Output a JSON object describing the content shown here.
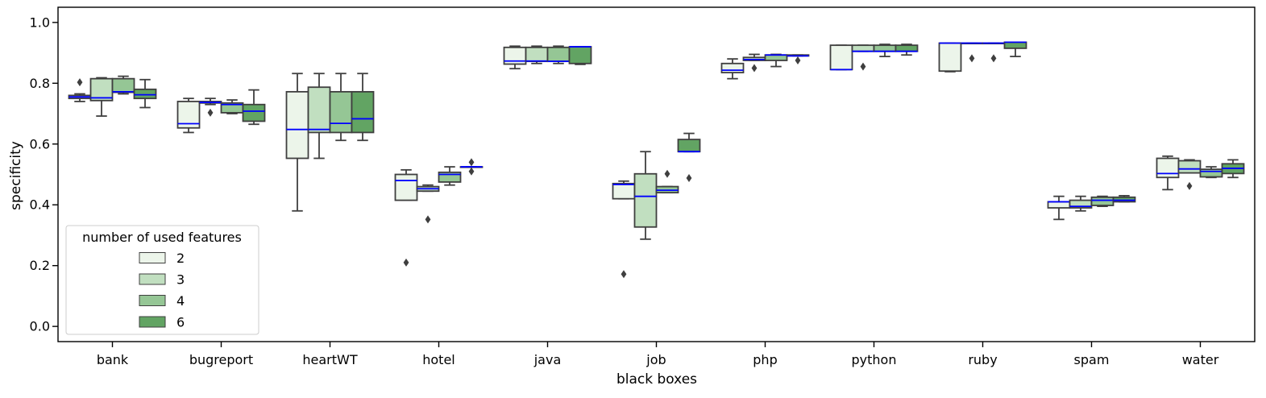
{
  "chart_data": {
    "type": "box",
    "title": "",
    "xlabel": "black boxes",
    "ylabel": "specificity",
    "ylim": [
      -0.05,
      1.05
    ],
    "yticks": [
      0.0,
      0.2,
      0.4,
      0.6,
      0.8,
      1.0
    ],
    "ytick_labels": [
      "0.0",
      "0.2",
      "0.4",
      "0.6",
      "0.8",
      "1.0"
    ],
    "grid": false,
    "categories": [
      "bank",
      "bugreport",
      "heartWT",
      "hotel",
      "java",
      "job",
      "php",
      "python",
      "ruby",
      "spam",
      "water"
    ],
    "legend": {
      "title": "number of used features",
      "position": "lower-left",
      "entries": [
        "2",
        "3",
        "4",
        "6"
      ]
    },
    "colors": {
      "series": [
        "#ecf5ea",
        "#c1dfc0",
        "#95c695",
        "#62a463"
      ],
      "median": "#0000ff",
      "edge": "#3f3f3f"
    },
    "series": [
      {
        "name": "2",
        "boxes": [
          {
            "whislo": 0.74,
            "q1": 0.75,
            "med": 0.755,
            "q3": 0.76,
            "whishi": 0.765,
            "fliers": [
              0.803
            ]
          },
          {
            "whislo": 0.638,
            "q1": 0.653,
            "med": 0.667,
            "q3": 0.74,
            "whishi": 0.75,
            "fliers": []
          },
          {
            "whislo": 0.38,
            "q1": 0.553,
            "med": 0.648,
            "q3": 0.772,
            "whishi": 0.832,
            "fliers": []
          },
          {
            "whislo": 0.415,
            "q1": 0.415,
            "med": 0.48,
            "q3": 0.5,
            "whishi": 0.515,
            "fliers": [
              0.21
            ]
          },
          {
            "whislo": 0.848,
            "q1": 0.863,
            "med": 0.873,
            "q3": 0.918,
            "whishi": 0.922,
            "fliers": []
          },
          {
            "whislo": 0.42,
            "q1": 0.42,
            "med": 0.467,
            "q3": 0.47,
            "whishi": 0.478,
            "fliers": [
              0.172
            ]
          },
          {
            "whislo": 0.815,
            "q1": 0.835,
            "med": 0.843,
            "q3": 0.865,
            "whishi": 0.88,
            "fliers": []
          },
          {
            "whislo": 0.845,
            "q1": 0.845,
            "med": 0.845,
            "q3": 0.925,
            "whishi": 0.925,
            "fliers": []
          },
          {
            "whislo": 0.838,
            "q1": 0.84,
            "med": 0.932,
            "q3": 0.932,
            "whishi": 0.932,
            "fliers": []
          },
          {
            "whislo": 0.352,
            "q1": 0.39,
            "med": 0.41,
            "q3": 0.41,
            "whishi": 0.428,
            "fliers": []
          },
          {
            "whislo": 0.45,
            "q1": 0.49,
            "med": 0.503,
            "q3": 0.553,
            "whishi": 0.56,
            "fliers": []
          }
        ]
      },
      {
        "name": "3",
        "boxes": [
          {
            "whislo": 0.692,
            "q1": 0.743,
            "med": 0.752,
            "q3": 0.815,
            "whishi": 0.818,
            "fliers": []
          },
          {
            "whislo": 0.73,
            "q1": 0.735,
            "med": 0.737,
            "q3": 0.74,
            "whishi": 0.75,
            "fliers": [
              0.703
            ]
          },
          {
            "whislo": 0.553,
            "q1": 0.638,
            "med": 0.648,
            "q3": 0.787,
            "whishi": 0.832,
            "fliers": []
          },
          {
            "whislo": 0.445,
            "q1": 0.445,
            "med": 0.453,
            "q3": 0.46,
            "whishi": 0.465,
            "fliers": [
              0.352
            ]
          },
          {
            "whislo": 0.865,
            "q1": 0.872,
            "med": 0.873,
            "q3": 0.918,
            "whishi": 0.922,
            "fliers": []
          },
          {
            "whislo": 0.287,
            "q1": 0.327,
            "med": 0.428,
            "q3": 0.502,
            "whishi": 0.575,
            "fliers": []
          },
          {
            "whislo": 0.875,
            "q1": 0.875,
            "med": 0.878,
            "q3": 0.885,
            "whishi": 0.895,
            "fliers": [
              0.85
            ]
          },
          {
            "whislo": 0.905,
            "q1": 0.905,
            "med": 0.905,
            "q3": 0.925,
            "whishi": 0.925,
            "fliers": [
              0.855
            ]
          },
          {
            "whislo": 0.932,
            "q1": 0.932,
            "med": 0.932,
            "q3": 0.932,
            "whishi": 0.932,
            "fliers": [
              0.882
            ]
          },
          {
            "whislo": 0.38,
            "q1": 0.39,
            "med": 0.395,
            "q3": 0.415,
            "whishi": 0.428,
            "fliers": []
          },
          {
            "whislo": 0.505,
            "q1": 0.505,
            "med": 0.518,
            "q3": 0.545,
            "whishi": 0.548,
            "fliers": [
              0.462
            ]
          }
        ]
      },
      {
        "name": "4",
        "boxes": [
          {
            "whislo": 0.765,
            "q1": 0.77,
            "med": 0.772,
            "q3": 0.815,
            "whishi": 0.823,
            "fliers": []
          },
          {
            "whislo": 0.7,
            "q1": 0.703,
            "med": 0.73,
            "q3": 0.735,
            "whishi": 0.745,
            "fliers": []
          },
          {
            "whislo": 0.612,
            "q1": 0.638,
            "med": 0.668,
            "q3": 0.772,
            "whishi": 0.832,
            "fliers": []
          },
          {
            "whislo": 0.465,
            "q1": 0.475,
            "med": 0.5,
            "q3": 0.507,
            "whishi": 0.525,
            "fliers": []
          },
          {
            "whislo": 0.865,
            "q1": 0.872,
            "med": 0.872,
            "q3": 0.918,
            "whishi": 0.922,
            "fliers": []
          },
          {
            "whislo": 0.44,
            "q1": 0.44,
            "med": 0.448,
            "q3": 0.46,
            "whishi": 0.46,
            "fliers": [
              0.502
            ]
          },
          {
            "whislo": 0.855,
            "q1": 0.875,
            "med": 0.893,
            "q3": 0.893,
            "whishi": 0.895,
            "fliers": []
          },
          {
            "whislo": 0.888,
            "q1": 0.905,
            "med": 0.905,
            "q3": 0.925,
            "whishi": 0.928,
            "fliers": []
          },
          {
            "whislo": 0.932,
            "q1": 0.932,
            "med": 0.932,
            "q3": 0.932,
            "whishi": 0.932,
            "fliers": [
              0.882
            ]
          },
          {
            "whislo": 0.395,
            "q1": 0.398,
            "med": 0.415,
            "q3": 0.425,
            "whishi": 0.428,
            "fliers": []
          },
          {
            "whislo": 0.49,
            "q1": 0.492,
            "med": 0.51,
            "q3": 0.517,
            "whishi": 0.525,
            "fliers": []
          }
        ]
      },
      {
        "name": "6",
        "boxes": [
          {
            "whislo": 0.72,
            "q1": 0.75,
            "med": 0.762,
            "q3": 0.78,
            "whishi": 0.812,
            "fliers": []
          },
          {
            "whislo": 0.665,
            "q1": 0.675,
            "med": 0.708,
            "q3": 0.73,
            "whishi": 0.778,
            "fliers": []
          },
          {
            "whislo": 0.612,
            "q1": 0.638,
            "med": 0.683,
            "q3": 0.772,
            "whishi": 0.832,
            "fliers": []
          },
          {
            "whislo": 0.525,
            "q1": 0.525,
            "med": 0.525,
            "q3": 0.525,
            "whishi": 0.525,
            "fliers": [
              0.51,
              0.54
            ]
          },
          {
            "whislo": 0.862,
            "q1": 0.865,
            "med": 0.92,
            "q3": 0.92,
            "whishi": 0.92,
            "fliers": []
          },
          {
            "whislo": 0.575,
            "q1": 0.575,
            "med": 0.575,
            "q3": 0.615,
            "whishi": 0.635,
            "fliers": [
              0.488
            ]
          },
          {
            "whislo": 0.89,
            "q1": 0.89,
            "med": 0.89,
            "q3": 0.893,
            "whishi": 0.893,
            "fliers": [
              0.875
            ]
          },
          {
            "whislo": 0.893,
            "q1": 0.905,
            "med": 0.905,
            "q3": 0.925,
            "whishi": 0.928,
            "fliers": []
          },
          {
            "whislo": 0.888,
            "q1": 0.915,
            "med": 0.935,
            "q3": 0.935,
            "whishi": 0.935,
            "fliers": []
          },
          {
            "whislo": 0.41,
            "q1": 0.41,
            "med": 0.415,
            "q3": 0.425,
            "whishi": 0.43,
            "fliers": []
          },
          {
            "whislo": 0.49,
            "q1": 0.503,
            "med": 0.52,
            "q3": 0.535,
            "whishi": 0.548,
            "fliers": []
          }
        ]
      }
    ]
  }
}
